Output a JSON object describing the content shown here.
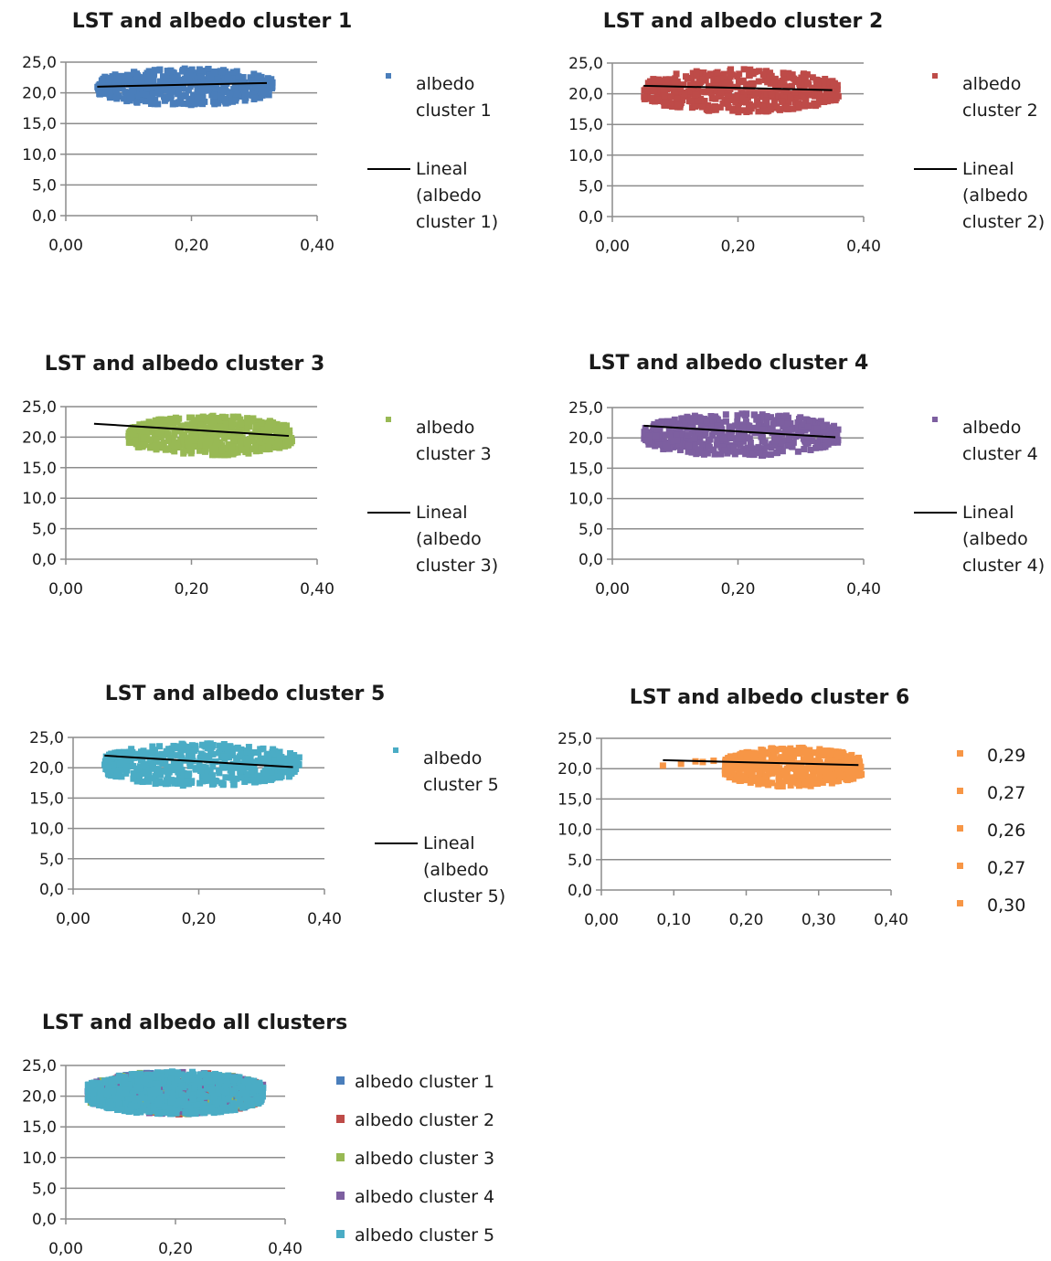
{
  "y_tick_labels": [
    "0,0",
    "5,0",
    "10,0",
    "15,0",
    "20,0",
    "25,0"
  ],
  "chart_data": [
    {
      "type": "scatter",
      "title": "LST and albedo cluster 1",
      "color": "#4a7ebb",
      "xlim": [
        0,
        0.4
      ],
      "ylim": [
        0,
        25
      ],
      "x_ticks": [
        0,
        0.2,
        0.4
      ],
      "x_tick_labels": [
        "0,00",
        "0,20",
        "0,40"
      ],
      "x_range": [
        0.05,
        0.33
      ],
      "y_range": [
        18,
        24
      ],
      "series": [
        {
          "name": "albedo cluster 1",
          "legend_lines": [
            "albedo",
            "cluster 1"
          ]
        }
      ],
      "trendline": {
        "name": "Lineal (albedo cluster 1)",
        "legend_lines": [
          "Lineal",
          "(albedo",
          "cluster 1)"
        ],
        "x": [
          0.05,
          0.32
        ],
        "y": [
          21.0,
          21.6
        ]
      },
      "grid": true,
      "legend": "right"
    },
    {
      "type": "scatter",
      "title": "LST and albedo cluster 2",
      "color": "#be4b48",
      "xlim": [
        0,
        0.4
      ],
      "ylim": [
        0,
        25
      ],
      "x_ticks": [
        0,
        0.2,
        0.4
      ],
      "x_tick_labels": [
        "0,00",
        "0,20",
        "0,40"
      ],
      "x_range": [
        0.05,
        0.36
      ],
      "y_range": [
        17,
        24
      ],
      "series": [
        {
          "name": "albedo cluster 2",
          "legend_lines": [
            "albedo",
            "cluster 2"
          ]
        }
      ],
      "trendline": {
        "name": "Lineal (albedo cluster 2)",
        "legend_lines": [
          "Lineal",
          "(albedo",
          "cluster 2)"
        ],
        "x": [
          0.05,
          0.35
        ],
        "y": [
          21.3,
          20.6
        ]
      },
      "grid": true,
      "legend": "right"
    },
    {
      "type": "scatter",
      "title": "LST and albedo cluster 3",
      "color": "#98b954",
      "xlim": [
        0,
        0.4
      ],
      "ylim": [
        0,
        25
      ],
      "x_ticks": [
        0,
        0.2,
        0.4
      ],
      "x_tick_labels": [
        "0,00",
        "0,20",
        "0,40"
      ],
      "x_range": [
        0.1,
        0.36
      ],
      "y_range": [
        17,
        23.5
      ],
      "series": [
        {
          "name": "albedo cluster 3",
          "legend_lines": [
            "albedo",
            "cluster 3"
          ]
        }
      ],
      "trendline": {
        "name": "Lineal (albedo cluster 3)",
        "legend_lines": [
          "Lineal",
          "(albedo",
          "cluster 3)"
        ],
        "x": [
          0.045,
          0.355
        ],
        "y": [
          22.2,
          20.2
        ]
      },
      "grid": true,
      "legend": "right"
    },
    {
      "type": "scatter",
      "title": "LST and albedo cluster 4",
      "color": "#7d5fa0",
      "xlim": [
        0,
        0.4
      ],
      "ylim": [
        0,
        25
      ],
      "x_ticks": [
        0,
        0.2,
        0.4
      ],
      "x_tick_labels": [
        "0,00",
        "0,20",
        "0,40"
      ],
      "x_range": [
        0.05,
        0.36
      ],
      "y_range": [
        17,
        24
      ],
      "series": [
        {
          "name": "albedo cluster 4",
          "legend_lines": [
            "albedo",
            "cluster 4"
          ]
        }
      ],
      "trendline": {
        "name": "Lineal (albedo cluster 4)",
        "legend_lines": [
          "Lineal",
          "(albedo",
          "cluster 4)"
        ],
        "x": [
          0.05,
          0.355
        ],
        "y": [
          22.0,
          20.1
        ]
      },
      "grid": true,
      "legend": "right"
    },
    {
      "type": "scatter",
      "title": "LST and albedo cluster 5",
      "color": "#4aacc5",
      "xlim": [
        0,
        0.4
      ],
      "ylim": [
        0,
        25
      ],
      "x_ticks": [
        0,
        0.2,
        0.4
      ],
      "x_tick_labels": [
        "0,00",
        "0,20",
        "0,40"
      ],
      "x_range": [
        0.05,
        0.36
      ],
      "y_range": [
        17,
        24
      ],
      "series": [
        {
          "name": "albedo cluster 5",
          "legend_lines": [
            "albedo",
            "cluster 5"
          ]
        }
      ],
      "trendline": {
        "name": "Lineal (albedo cluster 5)",
        "legend_lines": [
          "Lineal",
          "(albedo",
          "cluster 5)"
        ],
        "x": [
          0.05,
          0.35
        ],
        "y": [
          22.0,
          20.1
        ]
      },
      "grid": true,
      "legend": "right"
    },
    {
      "type": "scatter",
      "title": "LST and albedo cluster 6",
      "color": "#f79646",
      "xlim": [
        0,
        0.4
      ],
      "ylim": [
        0,
        25
      ],
      "x_ticks": [
        0,
        0.1,
        0.2,
        0.3,
        0.4
      ],
      "x_tick_labels": [
        "0,00",
        "0,10",
        "0,20",
        "0,30",
        "0,40"
      ],
      "x_range": [
        0.17,
        0.36
      ],
      "y_range": [
        17,
        23.5
      ],
      "extra_points": [
        [
          0.085,
          20.5
        ],
        [
          0.11,
          20.8
        ],
        [
          0.13,
          21.2
        ],
        [
          0.14,
          21.1
        ],
        [
          0.155,
          21.3
        ]
      ],
      "series": [
        {
          "name": "0,29"
        },
        {
          "name": "0,27"
        },
        {
          "name": "0,26"
        },
        {
          "name": "0,27"
        },
        {
          "name": "0,30"
        }
      ],
      "trendline": {
        "x": [
          0.085,
          0.355
        ],
        "y": [
          21.4,
          20.6
        ]
      },
      "grid": true,
      "legend": "right"
    },
    {
      "type": "scatter",
      "title": "LST and albedo all clusters",
      "xlim": [
        0,
        0.4
      ],
      "ylim": [
        0,
        25
      ],
      "x_ticks": [
        0,
        0.2,
        0.4
      ],
      "x_tick_labels": [
        "0,00",
        "0,20",
        "0,40"
      ],
      "x_range": [
        0.04,
        0.36
      ],
      "y_range": [
        17,
        24
      ],
      "series": [
        {
          "name": "albedo  cluster 1",
          "color": "#4a7ebb"
        },
        {
          "name": "albedo cluster 2",
          "color": "#be4b48"
        },
        {
          "name": "albedo cluster 3",
          "color": "#98b954"
        },
        {
          "name": "albedo cluster 4",
          "color": "#7d5fa0"
        },
        {
          "name": "albedo cluster 5",
          "color": "#4aacc5"
        }
      ],
      "grid": true,
      "legend": "right"
    }
  ]
}
